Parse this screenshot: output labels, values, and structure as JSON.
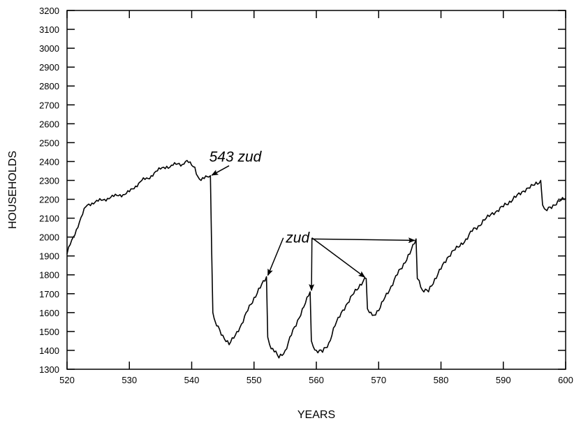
{
  "chart_data": {
    "type": "line",
    "xlabel": "YEARS",
    "ylabel": "HOUSEHOLDS",
    "xlim": [
      520,
      600
    ],
    "ylim": [
      1300,
      3200
    ],
    "xticks": [
      520,
      530,
      540,
      550,
      560,
      570,
      580,
      590,
      600
    ],
    "yticks": [
      1300,
      1400,
      1500,
      1600,
      1700,
      1800,
      1900,
      2000,
      2100,
      2200,
      2300,
      2400,
      2500,
      2600,
      2700,
      2800,
      2900,
      3000,
      3100,
      3200
    ],
    "grid": false,
    "series": [
      {
        "x": [
          520,
          520.5,
          521,
          521.5,
          522,
          522.5,
          523,
          523.5,
          524,
          524.5,
          525,
          525.5,
          526,
          526.5,
          527,
          527.5,
          528,
          528.5,
          529,
          529.5,
          530,
          530.5,
          531,
          531.5,
          532,
          532.5,
          533,
          533.5,
          534,
          534.5,
          535,
          535.5,
          536,
          536.5,
          537,
          537.5,
          538,
          538.5,
          539,
          539.5,
          540,
          540.5,
          541,
          541.5,
          542,
          542.5,
          543,
          543.2,
          543.4,
          543.6,
          544,
          545,
          546,
          547,
          548,
          549,
          550,
          551,
          552,
          552.2,
          552.5,
          553,
          554,
          555,
          556,
          557,
          558,
          559,
          559.2,
          559.5,
          560,
          561,
          562,
          563,
          564,
          565,
          566,
          567,
          568,
          568.2,
          568.5,
          569,
          570,
          571,
          572,
          573,
          574,
          575,
          576,
          576.2,
          576.5,
          577,
          578,
          579,
          580,
          581,
          582,
          583,
          584,
          585,
          586,
          587,
          588,
          589,
          590,
          591,
          592,
          593,
          594,
          595,
          596,
          596.3,
          596.6,
          597,
          598,
          599,
          600
        ],
        "y": [
          1910,
          1960,
          2000,
          2040,
          2080,
          2120,
          2160,
          2175,
          2180,
          2185,
          2190,
          2195,
          2200,
          2205,
          2210,
          2215,
          2220,
          2225,
          2225,
          2230,
          2240,
          2255,
          2270,
          2285,
          2300,
          2305,
          2310,
          2325,
          2340,
          2350,
          2360,
          2370,
          2375,
          2370,
          2380,
          2385,
          2390,
          2385,
          2400,
          2395,
          2380,
          2370,
          2320,
          2300,
          2310,
          2320,
          2325,
          1930,
          1600,
          1570,
          1530,
          1480,
          1430,
          1480,
          1540,
          1610,
          1680,
          1730,
          1790,
          1470,
          1430,
          1410,
          1360,
          1400,
          1480,
          1560,
          1630,
          1710,
          1450,
          1420,
          1400,
          1390,
          1440,
          1530,
          1600,
          1650,
          1700,
          1750,
          1780,
          1620,
          1600,
          1585,
          1610,
          1680,
          1740,
          1800,
          1860,
          1910,
          1990,
          1780,
          1770,
          1720,
          1710,
          1780,
          1830,
          1890,
          1930,
          1950,
          1990,
          2030,
          2060,
          2090,
          2120,
          2140,
          2160,
          2190,
          2210,
          2240,
          2260,
          2275,
          2300,
          2170,
          2150,
          2140,
          2170,
          2190,
          2205
        ]
      }
    ],
    "annotations": [
      {
        "text": "543 zud",
        "x": 547,
        "y": 2400,
        "points_to": [
          [
            543,
            2320
          ]
        ]
      },
      {
        "text": "zud",
        "x": 557,
        "y": 1970,
        "points_to": [
          [
            552,
            1790
          ],
          [
            559,
            1710
          ],
          [
            568,
            1780
          ],
          [
            576,
            1990
          ]
        ]
      }
    ]
  }
}
